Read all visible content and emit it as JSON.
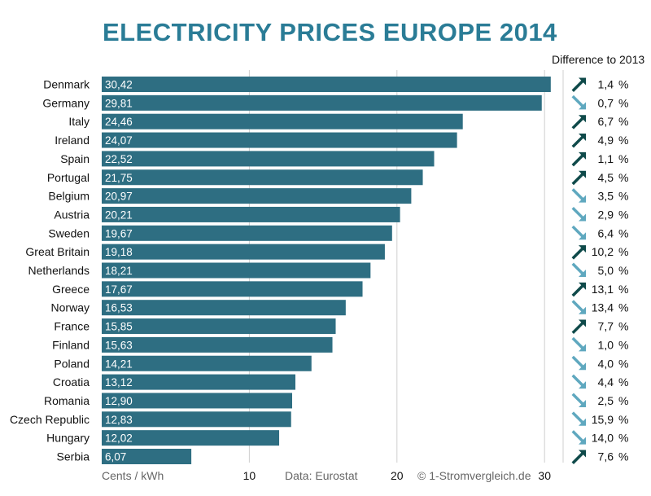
{
  "chart_data": {
    "type": "bar",
    "orientation": "horizontal",
    "title": "ELECTRICITY PRICES EUROPE 2014",
    "xlabel": "Cents / kWh",
    "xlim": [
      0,
      30.5
    ],
    "xticks": [
      "10",
      "20",
      "30"
    ],
    "xtick_values": [
      10,
      20,
      30
    ],
    "gridlines": "vertical",
    "source": "Data: Eurostat",
    "copyright": "© 1-Stromvergleich.de",
    "bar_color": "#2e6e82",
    "up_arrow_color": "#0f4a4a",
    "down_arrow_color": "#5fa8bf",
    "diff_header": "Difference to 2013",
    "categories": [
      "Denmark",
      "Germany",
      "Italy",
      "Ireland",
      "Spain",
      "Portugal",
      "Belgium",
      "Austria",
      "Sweden",
      "Great Britain",
      "Netherlands",
      "Greece",
      "Norway",
      "France",
      "Finland",
      "Poland",
      "Croatia",
      "Romania",
      "Czech Republic",
      "Hungary",
      "Serbia"
    ],
    "values": [
      30.42,
      29.81,
      24.46,
      24.07,
      22.52,
      21.75,
      20.97,
      20.21,
      19.67,
      19.18,
      18.21,
      17.67,
      16.53,
      15.85,
      15.63,
      14.21,
      13.12,
      12.9,
      12.83,
      12.02,
      6.07
    ],
    "value_labels": [
      "30,42",
      "29,81",
      "24,46",
      "24,07",
      "22,52",
      "21,75",
      "20,97",
      "20,21",
      "19,67",
      "19,18",
      "18,21",
      "17,67",
      "16,53",
      "15,85",
      "15,63",
      "14,21",
      "13,12",
      "12,90",
      "12,83",
      "12,02",
      "6,07"
    ],
    "diff_direction": [
      "up",
      "down",
      "up",
      "up",
      "up",
      "up",
      "down",
      "down",
      "down",
      "up",
      "down",
      "up",
      "down",
      "up",
      "down",
      "down",
      "down",
      "down",
      "down",
      "down",
      "up"
    ],
    "diff_labels": [
      "1,4",
      "0,7",
      "6,7",
      "4,9",
      "1,1",
      "4,5",
      "3,5",
      "2,9",
      "6,4",
      "10,2",
      "5,0",
      "13,1",
      "13,4",
      "7,7",
      "1,0",
      "4,0",
      "4,4",
      "2,5",
      "15,9",
      "14,0",
      "7,6"
    ],
    "diff_unit": "%"
  }
}
